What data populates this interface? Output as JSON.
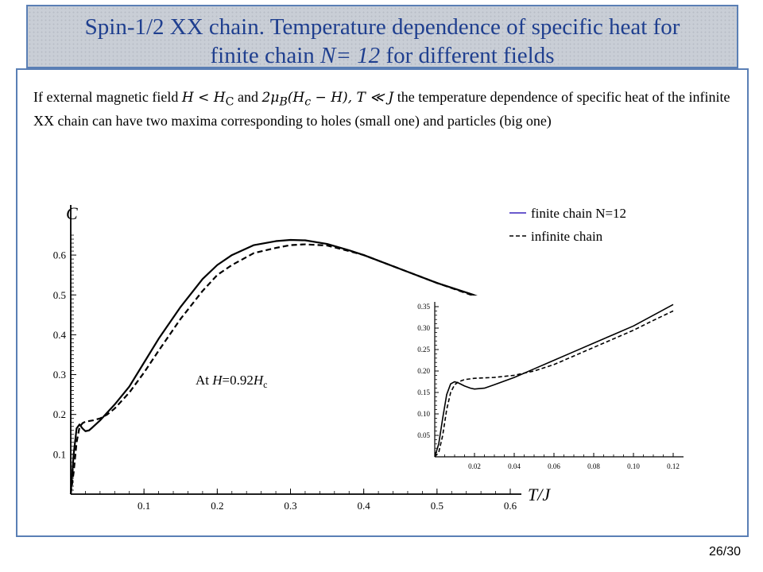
{
  "slide": {
    "title_line1": "Spin-1/2 XX chain. Temperature dependence of specific heat for",
    "title_line2_prefix": "finite chain  ",
    "title_line2_math": "N= 12",
    "title_line2_suffix": " for different fields",
    "description": {
      "p1": "If external magnetic field ",
      "m1": "H < H",
      "m1_sub": "C",
      "p2": "  and  ",
      "m2": "2μ",
      "m2_sub": "B",
      "m3": "(H",
      "m3_sub": "c",
      "m4": " − H), T ≪ J",
      "p3": "  the temperature dependence of specific heat of the infinite  XX chain can have two maxima corresponding  to holes (small one) and  particles (big one)"
    },
    "annotation_prefix": "At ",
    "annotation_var": "H",
    "annotation_value": "=0.92",
    "annotation_var2": "H",
    "annotation_sub": "c",
    "page_number": "26/30"
  },
  "chart_data": [
    {
      "type": "line",
      "ylabel": "C",
      "xlabel": "T/J",
      "xlim": [
        0,
        0.6
      ],
      "ylim": [
        0,
        0.65
      ],
      "x_ticks": [
        "0.1",
        "0.2",
        "0.3",
        "0.4",
        "0.5",
        "0.6"
      ],
      "y_ticks": [
        "0.1",
        "0.2",
        "0.3",
        "0.4",
        "0.5",
        "0.6"
      ],
      "legend_position": "top-right",
      "series": [
        {
          "name": "finite chain N=12",
          "style": "solid",
          "color": "#000000",
          "legend_color": "#6a5acd",
          "x": [
            0,
            0.004,
            0.008,
            0.012,
            0.016,
            0.02,
            0.025,
            0.03,
            0.04,
            0.05,
            0.06,
            0.08,
            0.1,
            0.12,
            0.15,
            0.18,
            0.2,
            0.22,
            0.25,
            0.28,
            0.3,
            0.32,
            0.35,
            0.38,
            0.4,
            0.45,
            0.5,
            0.55,
            0.6
          ],
          "y": [
            0,
            0.1,
            0.165,
            0.175,
            0.165,
            0.158,
            0.16,
            0.168,
            0.185,
            0.205,
            0.225,
            0.27,
            0.33,
            0.39,
            0.47,
            0.54,
            0.575,
            0.6,
            0.625,
            0.635,
            0.638,
            0.637,
            0.628,
            0.612,
            0.6,
            0.565,
            0.53,
            0.5,
            0.465
          ]
        },
        {
          "name": "infinite chain",
          "style": "dashed",
          "color": "#000000",
          "x": [
            0,
            0.004,
            0.008,
            0.012,
            0.016,
            0.02,
            0.03,
            0.04,
            0.05,
            0.06,
            0.08,
            0.1,
            0.12,
            0.15,
            0.18,
            0.2,
            0.22,
            0.25,
            0.28,
            0.3,
            0.32,
            0.35,
            0.38,
            0.4,
            0.45,
            0.5,
            0.55,
            0.6
          ],
          "y": [
            0,
            0.055,
            0.13,
            0.168,
            0.178,
            0.182,
            0.185,
            0.19,
            0.2,
            0.215,
            0.255,
            0.305,
            0.36,
            0.44,
            0.51,
            0.55,
            0.575,
            0.605,
            0.618,
            0.625,
            0.627,
            0.624,
            0.61,
            0.6,
            0.565,
            0.53,
            0.498,
            0.468
          ]
        }
      ]
    },
    {
      "type": "line",
      "title": "",
      "xlim": [
        0,
        0.12
      ],
      "ylim": [
        0,
        0.35
      ],
      "x_ticks": [
        "0.02",
        "0.04",
        "0.06",
        "0.08",
        "0.10",
        "0.12"
      ],
      "y_ticks": [
        "0.05",
        "0.10",
        "0.15",
        "0.20",
        "0.25",
        "0.30",
        "0.35"
      ],
      "series": [
        {
          "style": "solid",
          "x": [
            0,
            0.002,
            0.004,
            0.006,
            0.008,
            0.01,
            0.012,
            0.015,
            0.018,
            0.02,
            0.025,
            0.03,
            0.04,
            0.05,
            0.06,
            0.07,
            0.08,
            0.09,
            0.1,
            0.11,
            0.12
          ],
          "y": [
            0,
            0.03,
            0.09,
            0.145,
            0.17,
            0.175,
            0.172,
            0.165,
            0.16,
            0.158,
            0.16,
            0.168,
            0.185,
            0.205,
            0.225,
            0.245,
            0.265,
            0.285,
            0.305,
            0.33,
            0.355
          ]
        },
        {
          "style": "dashed",
          "x": [
            0,
            0.002,
            0.004,
            0.006,
            0.008,
            0.01,
            0.012,
            0.015,
            0.02,
            0.03,
            0.04,
            0.05,
            0.06,
            0.07,
            0.08,
            0.09,
            0.1,
            0.11,
            0.12
          ],
          "y": [
            0,
            0.01,
            0.05,
            0.11,
            0.15,
            0.168,
            0.175,
            0.18,
            0.183,
            0.185,
            0.19,
            0.2,
            0.215,
            0.235,
            0.255,
            0.275,
            0.295,
            0.318,
            0.34
          ]
        }
      ]
    }
  ]
}
